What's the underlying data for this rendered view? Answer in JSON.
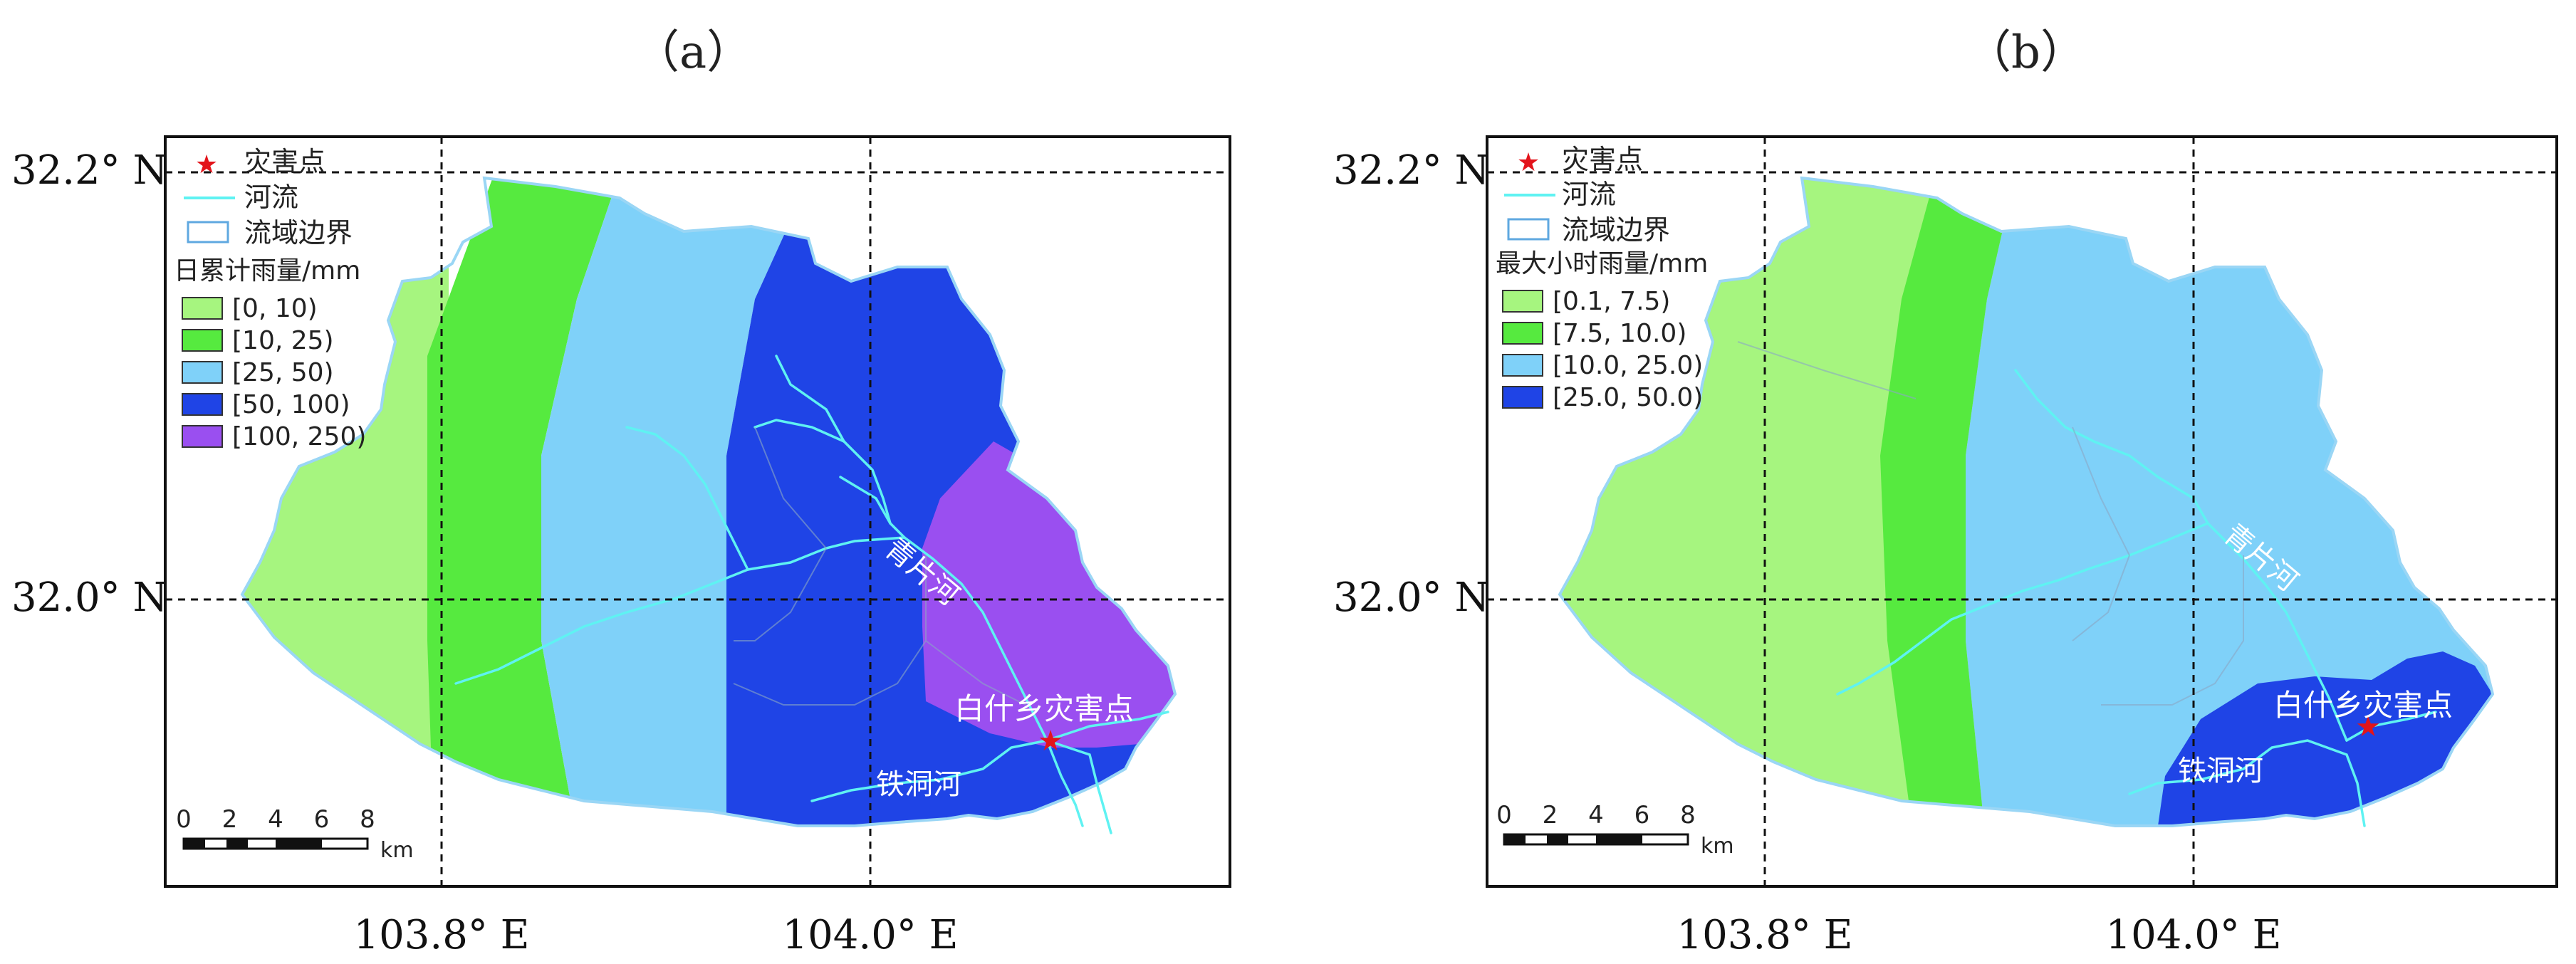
{
  "panels": [
    {
      "label": "（a）",
      "lat_labels": [
        "32.2° N",
        "32.0° N"
      ],
      "lon_labels": [
        "103.8° E",
        "104.0° E"
      ],
      "legend": {
        "disaster_point": "灾害点",
        "river": "河流",
        "basin_boundary": "流域边界",
        "title": "日累计雨量/mm",
        "classes": [
          {
            "label": "[0, 10)",
            "color": "#a6f57f"
          },
          {
            "label": "[10, 25)",
            "color": "#56ea3f"
          },
          {
            "label": "[25, 50)",
            "color": "#7fd1f9"
          },
          {
            "label": "[50, 100)",
            "color": "#1f44e6"
          },
          {
            "label": "[100, 250)",
            "color": "#9a4ff0"
          }
        ]
      },
      "rivers": {
        "qingpian": "青片河",
        "tiedong": "铁洞河"
      },
      "disaster_site": "白什乡灾害点",
      "scalebar": {
        "ticks": [
          "0",
          "2",
          "4",
          "6",
          "8"
        ],
        "unit": "km"
      }
    },
    {
      "label": "（b）",
      "lat_labels": [
        "32.2° N",
        "32.0° N"
      ],
      "lon_labels": [
        "103.8° E",
        "104.0° E"
      ],
      "legend": {
        "disaster_point": "灾害点",
        "river": "河流",
        "basin_boundary": "流域边界",
        "title": "最大小时雨量/mm",
        "classes": [
          {
            "label": "[0.1, 7.5)",
            "color": "#a6f57f"
          },
          {
            "label": "[7.5, 10.0)",
            "color": "#56ea3f"
          },
          {
            "label": "[10.0, 25.0)",
            "color": "#7fd1f9"
          },
          {
            "label": "[25.0, 50.0)",
            "color": "#1f44e6"
          }
        ]
      },
      "rivers": {
        "qingpian": "青片河",
        "tiedong": "铁洞河"
      },
      "disaster_site": "白什乡灾害点",
      "scalebar": {
        "ticks": [
          "0",
          "2",
          "4",
          "6",
          "8"
        ],
        "unit": "km"
      }
    }
  ],
  "colors": {
    "river": "#5ff2f2",
    "basin_boundary": "#9ad6f5",
    "disaster_star": "#e3141b"
  }
}
